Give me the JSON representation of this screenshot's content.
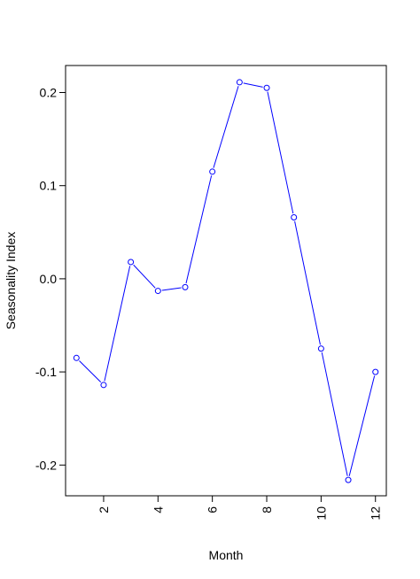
{
  "chart_data": {
    "type": "line",
    "title": "",
    "xlabel": "Month",
    "ylabel": "Seasonality Index",
    "x": [
      1,
      2,
      3,
      4,
      5,
      6,
      7,
      8,
      9,
      10,
      11,
      12
    ],
    "series": [
      {
        "values": [
          -0.085,
          -0.114,
          0.018,
          -0.013,
          -0.009,
          0.115,
          0.211,
          0.205,
          0.066,
          -0.075,
          -0.216,
          -0.1
        ]
      }
    ],
    "x_ticks": [
      2,
      4,
      6,
      8,
      10,
      12
    ],
    "x_tick_labels": [
      "2",
      "4",
      "6",
      "8",
      "10",
      "12"
    ],
    "y_ticks": [
      -0.2,
      -0.1,
      0.0,
      0.1,
      0.2
    ],
    "y_tick_labels": [
      "-0.2",
      "-0.1",
      "0.0",
      "0.1",
      "0.2"
    ],
    "xlim": [
      0.6,
      12.4
    ],
    "ylim": [
      -0.233,
      0.229
    ],
    "grid": false,
    "legend": "none",
    "line_color": "#0000ff",
    "marker": "open-circle"
  }
}
